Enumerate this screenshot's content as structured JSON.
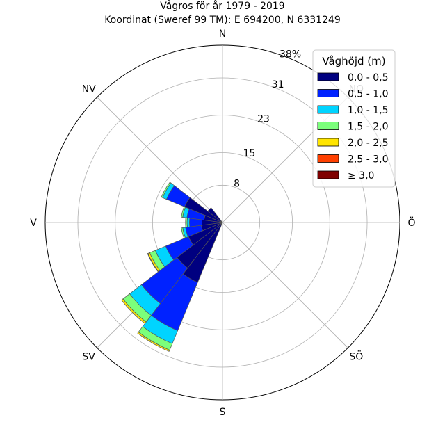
{
  "chart_data": {
    "type": "windrose",
    "title": "Vågros för år 1979 - 2019",
    "subtitle": "Koordinat (Sweref 99 TM): E 694200, N 6331249",
    "directions": [
      "N",
      "NO",
      "Ö",
      "SÖ",
      "S",
      "SV",
      "V",
      "NV"
    ],
    "radial_ticks": [
      "8",
      "15",
      "23",
      "31",
      "38%"
    ],
    "radial_tick_values": [
      8,
      15,
      23,
      31,
      38
    ],
    "rmax": 38,
    "legend": {
      "title": "Våghöjd (m)",
      "placement": "top-right",
      "entries": [
        "0,0 - 0,5",
        "0,5 - 1,0",
        "1,0 - 1,5",
        "1,5 - 2,0",
        "2,0 - 2,5",
        "2,5 - 3,0",
        "≥ 3,0"
      ]
    },
    "colors": [
      "#000080",
      "#0022ff",
      "#00d4ff",
      "#7bff7b",
      "#ffe500",
      "#ff4000",
      "#800000"
    ],
    "sector_angles_deg": [
      210,
      225,
      240,
      255,
      270,
      285,
      300,
      315
    ],
    "sector_width_deg": 15,
    "series": [
      {
        "name": "0,0 - 0,5",
        "values": [
          13.9,
          12.3,
          7.9,
          4.6,
          4.4,
          4.0,
          8.8,
          4.0
        ]
      },
      {
        "name": "0,5 - 1,0",
        "values": [
          11.2,
          9.6,
          5.3,
          3.4,
          2.7,
          3.7,
          4.2,
          0.0
        ]
      },
      {
        "name": "1,0 - 1,5",
        "values": [
          3.0,
          3.2,
          2.4,
          0.6,
          0.5,
          0.9,
          0.9,
          0.0
        ]
      },
      {
        "name": "1,5 - 2,0",
        "values": [
          1.5,
          1.8,
          1.3,
          0.3,
          0.3,
          0.3,
          0.3,
          0.0
        ]
      },
      {
        "name": "2,0 - 2,5",
        "values": [
          0.3,
          0.4,
          0.4,
          0.0,
          0.0,
          0.0,
          0.0,
          0.0
        ]
      },
      {
        "name": "2,5 - 3,0",
        "values": [
          0.0,
          0.0,
          0.1,
          0.0,
          0.0,
          0.0,
          0.0,
          0.0
        ]
      },
      {
        "name": "≥ 3,0",
        "values": [
          0.0,
          0.0,
          0.0,
          0.0,
          0.0,
          0.0,
          0.0,
          0.0
        ]
      }
    ]
  }
}
